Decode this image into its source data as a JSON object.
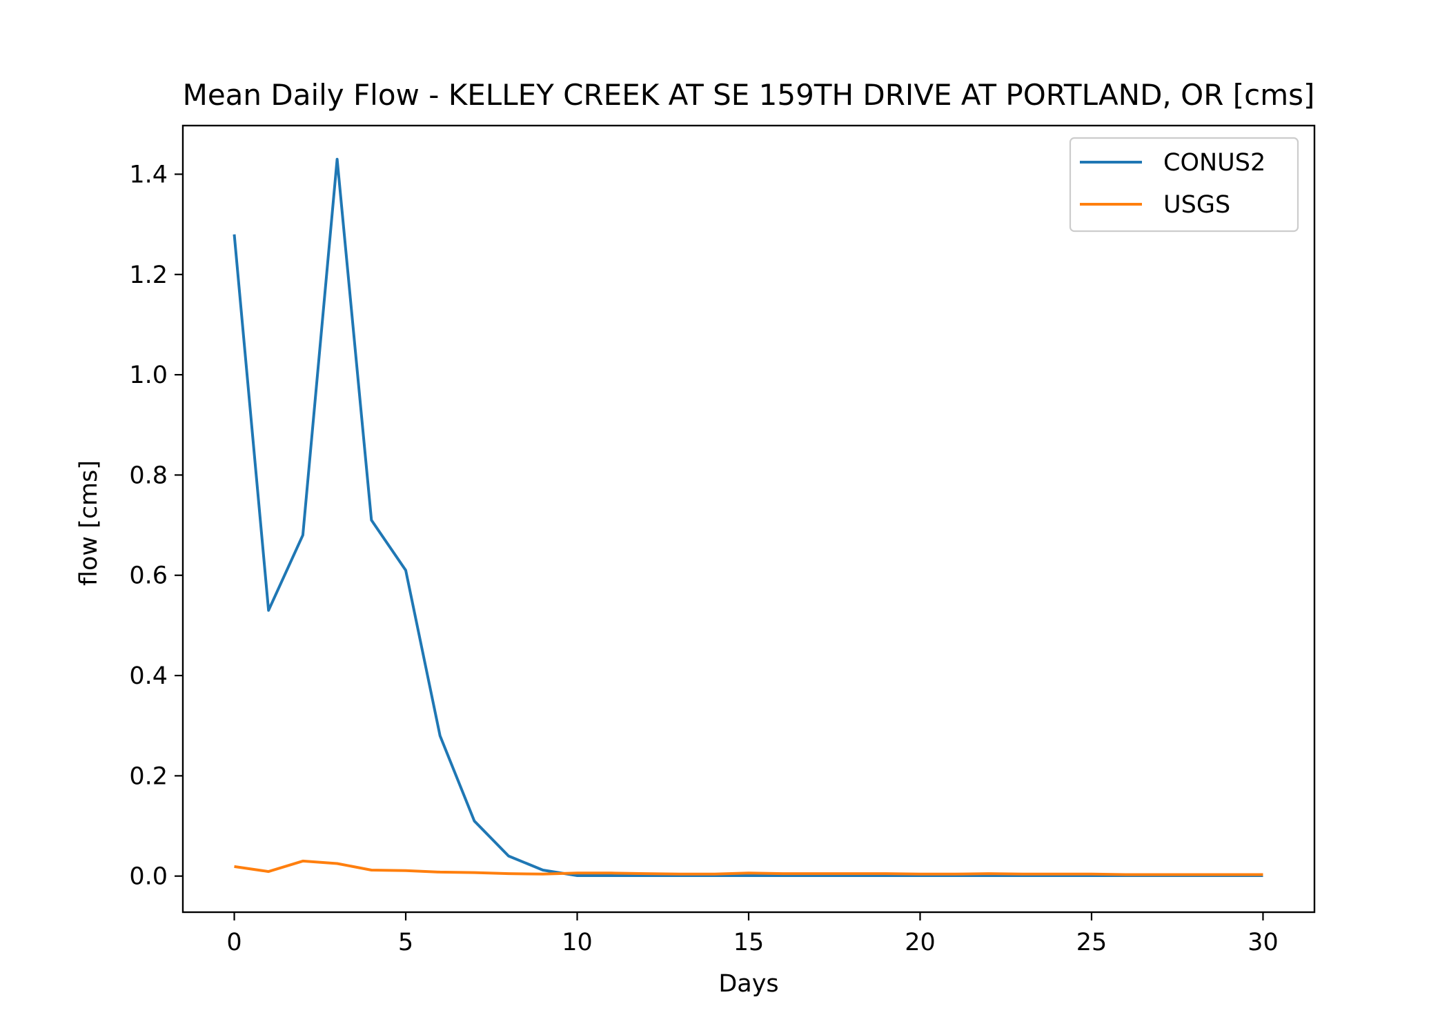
{
  "chart_data": {
    "type": "line",
    "title": "Mean Daily Flow - KELLEY CREEK AT SE 159TH DRIVE AT PORTLAND, OR [cms]",
    "xlabel": "Days",
    "ylabel": "flow [cms]",
    "xlim": [
      -1.5,
      31.5
    ],
    "ylim": [
      -0.072,
      1.497
    ],
    "x_ticks": [
      0,
      5,
      10,
      15,
      20,
      25,
      30
    ],
    "y_ticks": [
      0.0,
      0.2,
      0.4,
      0.6,
      0.8,
      1.0,
      1.2,
      1.4
    ],
    "x_tick_labels": [
      "0",
      "5",
      "10",
      "15",
      "20",
      "25",
      "30"
    ],
    "y_tick_labels": [
      "0.0",
      "0.2",
      "0.4",
      "0.6",
      "0.8",
      "1.0",
      "1.2",
      "1.4"
    ],
    "grid": false,
    "legend_position": "top-right",
    "x": [
      0,
      1,
      2,
      3,
      4,
      5,
      6,
      7,
      8,
      9,
      10,
      11,
      12,
      13,
      14,
      15,
      16,
      17,
      18,
      19,
      20,
      21,
      22,
      23,
      24,
      25,
      26,
      27,
      28,
      29,
      30
    ],
    "series": [
      {
        "name": "CONUS2",
        "color": "#1f77b4",
        "values": [
          1.28,
          0.53,
          0.68,
          1.43,
          0.71,
          0.61,
          0.28,
          0.11,
          0.04,
          0.012,
          0.001,
          0.001,
          0.001,
          0.001,
          0.001,
          0.001,
          0.001,
          0.001,
          0.001,
          0.001,
          0.001,
          0.001,
          0.001,
          0.001,
          0.001,
          0.001,
          0.001,
          0.001,
          0.001,
          0.001,
          0.001
        ]
      },
      {
        "name": "USGS",
        "color": "#ff7f0e",
        "values": [
          0.019,
          0.009,
          0.03,
          0.025,
          0.012,
          0.011,
          0.008,
          0.007,
          0.005,
          0.004,
          0.006,
          0.006,
          0.005,
          0.004,
          0.004,
          0.006,
          0.005,
          0.005,
          0.005,
          0.005,
          0.004,
          0.004,
          0.005,
          0.004,
          0.004,
          0.004,
          0.003,
          0.003,
          0.003,
          0.003,
          0.003
        ]
      }
    ]
  }
}
